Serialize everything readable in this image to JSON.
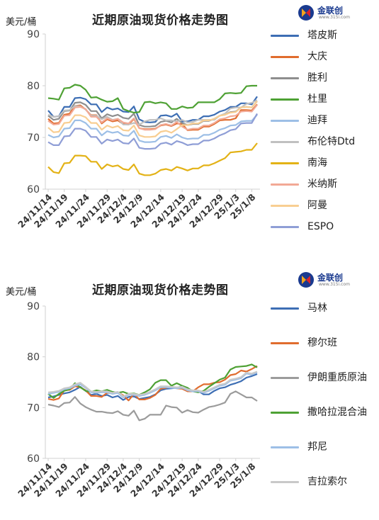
{
  "chart_data": [
    {
      "type": "line",
      "title": "近期原油现货价格走势图",
      "ylabel": "美元/桶",
      "ylim": [
        60,
        90
      ],
      "yticks": [
        60,
        70,
        80,
        90
      ],
      "grid": false,
      "legend_position": "right",
      "xtick_labels": [
        "24/11/14",
        "24/11/19",
        "24/11/24",
        "24/11/29",
        "24/12/4",
        "24/12/9",
        "24/12/14",
        "24/12/19",
        "24/12/24",
        "24/12/29",
        "25/1/3",
        "25/1/8"
      ],
      "x": [
        "24/11/14",
        "24/11/15",
        "24/11/18",
        "24/11/19",
        "24/11/20",
        "24/11/21",
        "24/11/22",
        "24/11/25",
        "24/11/26",
        "24/11/27",
        "24/11/28",
        "24/11/29",
        "24/12/2",
        "24/12/3",
        "24/12/4",
        "24/12/5",
        "24/12/6",
        "24/12/9",
        "24/12/10",
        "24/12/11",
        "24/12/12",
        "24/12/13",
        "24/12/16",
        "24/12/17",
        "24/12/18",
        "24/12/19",
        "24/12/20",
        "24/12/23",
        "24/12/24",
        "24/12/25",
        "24/12/26",
        "24/12/27",
        "24/12/30",
        "24/12/31",
        "25/1/2",
        "25/1/3",
        "25/1/6",
        "25/1/7",
        "25/1/8",
        "25/1/9"
      ],
      "series": [
        {
          "name": "塔皮斯",
          "color": "#3d6eb4",
          "values": [
            75.2,
            74.0,
            74.1,
            75.9,
            75.9,
            77.6,
            77.7,
            77.4,
            76.4,
            76.4,
            74.9,
            75.8,
            75.4,
            75.6,
            75.0,
            74.9,
            76.0,
            73.5,
            73.0,
            72.9,
            73.0,
            74.2,
            74.3,
            74.0,
            74.6,
            73.1,
            73.1,
            73.4,
            73.4,
            74.1,
            74.1,
            74.4,
            75.0,
            75.3,
            75.9,
            75.9,
            76.6,
            76.6,
            76.4,
            77.9
          ]
        },
        {
          "name": "大庆",
          "color": "#e06c2e",
          "values": [
            73.6,
            72.7,
            72.8,
            74.4,
            74.6,
            76.1,
            76.2,
            75.4,
            74.3,
            74.3,
            72.7,
            73.5,
            73.1,
            73.3,
            72.6,
            72.5,
            73.6,
            71.8,
            71.6,
            71.6,
            71.7,
            72.3,
            72.5,
            72.2,
            72.7,
            72.6,
            71.4,
            71.5,
            71.5,
            72.1,
            72.1,
            72.6,
            73.3,
            73.4,
            73.4,
            73.7,
            75.3,
            75.3,
            75.2,
            76.4
          ]
        },
        {
          "name": "胜利",
          "color": "#8e8e8e",
          "values": [
            74.2,
            73.4,
            73.6,
            75.1,
            75.2,
            76.7,
            76.8,
            76.3,
            75.1,
            75.1,
            73.7,
            74.5,
            74.1,
            74.4,
            73.8,
            73.6,
            74.6,
            72.4,
            72.1,
            72.1,
            72.2,
            73.0,
            73.2,
            72.9,
            73.6,
            72.8,
            72.4,
            72.6,
            72.6,
            73.2,
            73.2,
            73.6,
            74.2,
            74.4,
            74.9,
            75.0,
            75.8,
            75.9,
            75.8,
            77.0
          ]
        },
        {
          "name": "杜里",
          "color": "#4ea134",
          "values": [
            77.6,
            77.5,
            77.3,
            79.5,
            79.6,
            80.2,
            80.0,
            79.2,
            77.7,
            77.8,
            77.3,
            76.9,
            77.0,
            77.6,
            75.5,
            75.1,
            74.8,
            74.9,
            76.8,
            76.9,
            76.6,
            76.8,
            76.6,
            75.5,
            75.5,
            76.0,
            75.7,
            75.8,
            76.8,
            76.8,
            76.8,
            76.8,
            77.4,
            78.5,
            78.6,
            78.5,
            78.6,
            79.9,
            80.0,
            80.0
          ]
        },
        {
          "name": "迪拜",
          "color": "#9dbfe6",
          "values": [
            70.5,
            70.0,
            70.2,
            71.7,
            71.8,
            73.3,
            73.3,
            72.8,
            71.7,
            71.7,
            70.4,
            71.2,
            70.9,
            71.1,
            70.4,
            70.3,
            71.3,
            69.4,
            69.1,
            69.1,
            69.2,
            70.1,
            70.3,
            69.9,
            70.6,
            70.0,
            69.7,
            69.8,
            69.8,
            70.5,
            70.5,
            70.9,
            71.5,
            71.8,
            72.3,
            72.4,
            73.1,
            73.2,
            73.2,
            74.4
          ]
        },
        {
          "name": "布伦特Dtd",
          "color": "#c0c0c0",
          "values": [
            74.4,
            74.0,
            74.1,
            75.2,
            75.3,
            76.1,
            76.0,
            75.4,
            74.2,
            74.2,
            73.5,
            74.0,
            73.4,
            73.6,
            72.5,
            72.5,
            72.8,
            72.5,
            73.1,
            73.4,
            73.4,
            73.7,
            73.3,
            73.3,
            73.1,
            73.4,
            72.9,
            73.0,
            73.4,
            73.4,
            73.4,
            73.4,
            74.2,
            74.6,
            75.6,
            75.8,
            75.8,
            76.5,
            76.7,
            77.2
          ]
        },
        {
          "name": "南海",
          "color": "#e3b216",
          "values": [
            64.3,
            63.3,
            63.1,
            65.0,
            65.1,
            66.5,
            66.5,
            66.4,
            65.3,
            65.3,
            63.9,
            64.8,
            64.4,
            64.6,
            63.9,
            63.7,
            64.8,
            63.0,
            62.7,
            62.7,
            63.0,
            63.7,
            63.9,
            63.6,
            64.3,
            64.0,
            63.6,
            64.0,
            64.0,
            64.6,
            64.6,
            65.0,
            65.5,
            66.0,
            67.1,
            67.2,
            67.3,
            67.6,
            67.6,
            68.9
          ]
        },
        {
          "name": "米纳斯",
          "color": "#f2a995",
          "values": [
            73.2,
            72.5,
            72.6,
            74.2,
            74.3,
            75.8,
            75.9,
            75.5,
            74.0,
            74.0,
            72.9,
            73.7,
            73.3,
            73.6,
            72.9,
            72.7,
            73.7,
            71.8,
            71.5,
            71.5,
            71.6,
            72.4,
            72.6,
            72.3,
            73.0,
            72.1,
            71.5,
            71.7,
            71.7,
            72.3,
            72.3,
            72.8,
            73.5,
            73.7,
            74.1,
            74.2,
            75.0,
            75.1,
            75.0,
            76.3
          ]
        },
        {
          "name": "阿曼",
          "color": "#f8ce92",
          "values": [
            71.9,
            71.0,
            71.1,
            72.8,
            72.9,
            74.3,
            74.3,
            73.9,
            72.8,
            72.8,
            71.5,
            72.3,
            71.9,
            72.2,
            71.4,
            71.3,
            72.3,
            70.4,
            70.1,
            70.1,
            70.2,
            71.1,
            71.3,
            70.9,
            71.6,
            72.4,
            72.4,
            72.7,
            72.7,
            73.3,
            73.3,
            73.6,
            74.2,
            74.4,
            74.8,
            74.9,
            75.8,
            75.9,
            75.8,
            77.0
          ]
        },
        {
          "name": "ESPO",
          "color": "#8f9ed6",
          "values": [
            69.1,
            68.5,
            68.5,
            70.2,
            70.3,
            71.7,
            71.7,
            71.3,
            70.1,
            70.1,
            68.8,
            69.6,
            69.3,
            69.6,
            68.9,
            68.8,
            69.8,
            68.0,
            67.8,
            67.8,
            67.9,
            68.8,
            69.0,
            68.6,
            69.3,
            69.0,
            68.5,
            68.7,
            68.7,
            69.4,
            69.4,
            69.8,
            70.4,
            70.8,
            71.4,
            71.6,
            72.7,
            72.8,
            72.8,
            74.6
          ]
        }
      ]
    },
    {
      "type": "line",
      "title": "近期原油现货价格走势图",
      "ylabel": "美元/桶",
      "ylim": [
        60,
        90
      ],
      "yticks": [
        60,
        70,
        80,
        90
      ],
      "grid": false,
      "legend_position": "right",
      "xtick_labels": [
        "24/11/14",
        "24/11/19",
        "24/11/24",
        "24/11/29",
        "24/12/4",
        "24/12/9",
        "24/12/14",
        "24/12/19",
        "24/12/24",
        "24/12/29",
        "25/1/3",
        "25/1/8"
      ],
      "x": [
        "24/11/14",
        "24/11/15",
        "24/11/18",
        "24/11/19",
        "24/11/20",
        "24/11/21",
        "24/11/22",
        "24/11/25",
        "24/11/26",
        "24/11/27",
        "24/11/28",
        "24/11/29",
        "24/12/2",
        "24/12/3",
        "24/12/4",
        "24/12/5",
        "24/12/6",
        "24/12/9",
        "24/12/10",
        "24/12/11",
        "24/12/12",
        "24/12/13",
        "24/12/16",
        "24/12/17",
        "24/12/18",
        "24/12/19",
        "24/12/20",
        "24/12/23",
        "24/12/24",
        "24/12/25",
        "24/12/26",
        "24/12/27",
        "24/12/30",
        "24/12/31",
        "25/1/2",
        "25/1/3",
        "25/1/6",
        "25/1/7",
        "25/1/8",
        "25/1/9"
      ],
      "series": [
        {
          "name": "马林",
          "color": "#3d6eb4",
          "values": [
            72.0,
            72.2,
            72.5,
            72.8,
            73.0,
            73.5,
            74.1,
            73.3,
            72.5,
            72.7,
            72.3,
            72.5,
            72.0,
            72.3,
            71.5,
            72.1,
            72.2,
            71.7,
            71.9,
            72.1,
            72.6,
            73.4,
            73.7,
            73.8,
            73.9,
            74.2,
            73.5,
            73.3,
            73.3,
            72.6,
            72.6,
            73.3,
            73.8,
            74.0,
            74.5,
            74.8,
            75.2,
            75.9,
            76.2,
            76.6
          ]
        },
        {
          "name": "穆尔班",
          "color": "#e06c2e",
          "values": [
            71.7,
            71.5,
            71.8,
            73.4,
            73.5,
            74.2,
            74.0,
            73.4,
            72.3,
            72.3,
            72.1,
            72.9,
            72.8,
            73.0,
            72.4,
            71.4,
            72.7,
            71.6,
            71.6,
            71.9,
            72.5,
            73.7,
            73.9,
            74.1,
            73.8,
            73.7,
            73.2,
            73.2,
            74.0,
            74.6,
            74.6,
            74.9,
            75.0,
            75.5,
            76.4,
            76.6,
            77.3,
            77.1,
            77.6,
            78.2
          ]
        },
        {
          "name": "伊朗重质原油",
          "color": "#9b9b9b",
          "values": [
            70.6,
            70.4,
            70.1,
            70.9,
            71.0,
            72.1,
            70.8,
            70.1,
            69.6,
            69.2,
            69.2,
            69.0,
            68.9,
            69.3,
            68.6,
            68.4,
            69.4,
            67.5,
            67.8,
            68.6,
            68.6,
            68.6,
            70.4,
            70.1,
            70.0,
            69.0,
            69.5,
            69.1,
            69.0,
            69.6,
            70.1,
            70.3,
            70.6,
            71.0,
            72.7,
            73.2,
            72.6,
            72.0,
            72.0,
            71.3
          ]
        },
        {
          "name": "撒哈拉混合油",
          "color": "#4ea134",
          "values": [
            72.7,
            71.9,
            72.7,
            73.3,
            73.6,
            74.8,
            74.0,
            73.3,
            73.1,
            73.4,
            73.2,
            73.5,
            73.1,
            72.9,
            73.1,
            72.7,
            72.8,
            72.5,
            73.0,
            73.6,
            74.9,
            75.4,
            75.4,
            74.3,
            74.8,
            74.3,
            73.9,
            73.2,
            73.0,
            73.3,
            74.1,
            74.8,
            75.5,
            75.9,
            77.5,
            78.0,
            78.1,
            78.2,
            78.5,
            77.9
          ]
        },
        {
          "name": "邦尼",
          "color": "#9dbfe6",
          "values": [
            72.7,
            72.9,
            73.1,
            73.6,
            73.8,
            74.3,
            74.6,
            73.9,
            73.0,
            72.9,
            73.0,
            73.0,
            72.7,
            72.9,
            72.0,
            72.5,
            72.5,
            72.3,
            72.5,
            72.9,
            73.4,
            74.0,
            74.0,
            73.9,
            73.8,
            73.9,
            73.4,
            73.2,
            73.2,
            72.9,
            73.3,
            73.8,
            74.3,
            74.5,
            75.3,
            75.5,
            75.8,
            76.7,
            76.5,
            76.9
          ]
        },
        {
          "name": "吉拉索尔",
          "color": "#c9c9c9",
          "values": [
            73.0,
            73.1,
            73.3,
            73.8,
            74.0,
            74.6,
            74.9,
            74.1,
            73.2,
            73.1,
            73.2,
            73.2,
            72.9,
            73.1,
            72.2,
            72.7,
            72.7,
            72.5,
            72.7,
            73.1,
            73.6,
            74.2,
            74.2,
            74.1,
            74.0,
            74.1,
            73.6,
            73.4,
            73.4,
            73.1,
            73.5,
            74.0,
            74.5,
            74.7,
            75.5,
            75.7,
            76.0,
            76.9,
            76.7,
            77.1
          ]
        }
      ]
    }
  ],
  "logo": {
    "text": "金联创",
    "sub": "www.315i.com"
  }
}
